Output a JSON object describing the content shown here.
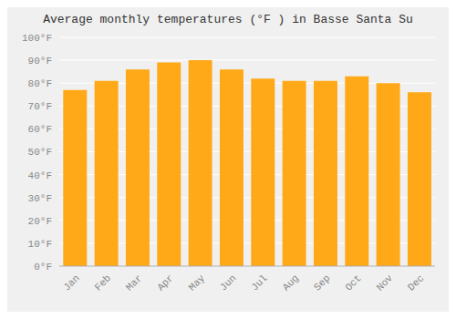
{
  "chart_data": {
    "type": "bar",
    "title": "Average monthly temperatures (°F ) in Basse Santa Su",
    "categories": [
      "Jan",
      "Feb",
      "Mar",
      "Apr",
      "May",
      "Jun",
      "Jul",
      "Aug",
      "Sep",
      "Oct",
      "Nov",
      "Dec"
    ],
    "values": [
      77,
      81,
      86,
      89,
      90,
      86,
      82,
      81,
      81,
      83,
      80,
      76
    ],
    "color": "#FFA918",
    "ylim": [
      0,
      100
    ],
    "yticks": [
      {
        "value": 0,
        "label": "0°F"
      },
      {
        "value": 10,
        "label": "10°F"
      },
      {
        "value": 20,
        "label": "20°F"
      },
      {
        "value": 30,
        "label": "30°F"
      },
      {
        "value": 40,
        "label": "40°F"
      },
      {
        "value": 50,
        "label": "50°F"
      },
      {
        "value": 60,
        "label": "60°F"
      },
      {
        "value": 70,
        "label": "70°F"
      },
      {
        "value": 80,
        "label": "80°F"
      },
      {
        "value": 90,
        "label": "90°F"
      },
      {
        "value": 100,
        "label": "100°F"
      }
    ],
    "grid": true
  }
}
